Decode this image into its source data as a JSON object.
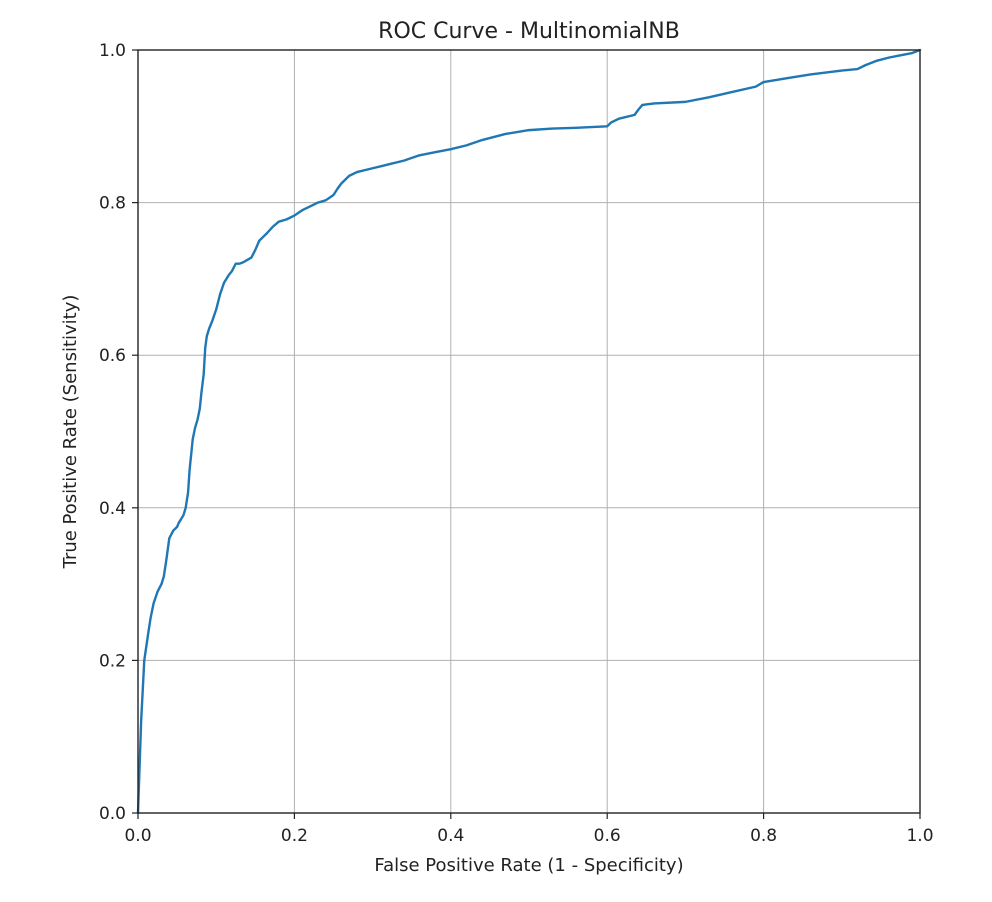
{
  "chart_data": {
    "type": "line",
    "title": "ROC Curve - MultinomialNB",
    "xlabel": "False Positive Rate (1 - Specificity)",
    "ylabel": "True Positive Rate (Sensitivity)",
    "xlim": [
      0.0,
      1.0
    ],
    "ylim": [
      0.0,
      1.0
    ],
    "xticks": [
      "0.0",
      "0.2",
      "0.4",
      "0.6",
      "0.8",
      "1.0"
    ],
    "yticks": [
      "0.0",
      "0.2",
      "0.4",
      "0.6",
      "0.8",
      "1.0"
    ],
    "grid": true,
    "legend": "none",
    "series": [
      {
        "color": "#1f77b4",
        "x": [
          0.0,
          0.004,
          0.008,
          0.013,
          0.016,
          0.02,
          0.025,
          0.03,
          0.033,
          0.036,
          0.04,
          0.045,
          0.05,
          0.052,
          0.055,
          0.058,
          0.061,
          0.064,
          0.066,
          0.068,
          0.07,
          0.073,
          0.076,
          0.079,
          0.081,
          0.084,
          0.086,
          0.088,
          0.091,
          0.095,
          0.1,
          0.105,
          0.11,
          0.116,
          0.12,
          0.125,
          0.13,
          0.135,
          0.14,
          0.145,
          0.15,
          0.155,
          0.16,
          0.165,
          0.172,
          0.18,
          0.19,
          0.2,
          0.21,
          0.22,
          0.23,
          0.24,
          0.25,
          0.255,
          0.26,
          0.27,
          0.28,
          0.3,
          0.32,
          0.34,
          0.36,
          0.38,
          0.4,
          0.42,
          0.44,
          0.47,
          0.5,
          0.53,
          0.56,
          0.6,
          0.605,
          0.615,
          0.635,
          0.64,
          0.645,
          0.66,
          0.7,
          0.73,
          0.76,
          0.79,
          0.8,
          0.83,
          0.86,
          0.9,
          0.92,
          0.93,
          0.945,
          0.96,
          0.975,
          0.99,
          1.0
        ],
        "y": [
          0.0,
          0.12,
          0.2,
          0.235,
          0.255,
          0.275,
          0.29,
          0.3,
          0.31,
          0.33,
          0.36,
          0.37,
          0.375,
          0.38,
          0.385,
          0.39,
          0.4,
          0.42,
          0.45,
          0.47,
          0.49,
          0.505,
          0.515,
          0.53,
          0.55,
          0.575,
          0.61,
          0.625,
          0.635,
          0.645,
          0.66,
          0.68,
          0.695,
          0.705,
          0.71,
          0.72,
          0.72,
          0.722,
          0.725,
          0.728,
          0.738,
          0.75,
          0.755,
          0.76,
          0.768,
          0.775,
          0.778,
          0.783,
          0.79,
          0.795,
          0.8,
          0.803,
          0.81,
          0.818,
          0.825,
          0.835,
          0.84,
          0.845,
          0.85,
          0.855,
          0.862,
          0.866,
          0.87,
          0.875,
          0.882,
          0.89,
          0.895,
          0.897,
          0.898,
          0.9,
          0.905,
          0.91,
          0.915,
          0.922,
          0.928,
          0.93,
          0.932,
          0.938,
          0.945,
          0.952,
          0.958,
          0.963,
          0.968,
          0.973,
          0.975,
          0.98,
          0.986,
          0.99,
          0.993,
          0.996,
          1.0
        ]
      }
    ]
  }
}
